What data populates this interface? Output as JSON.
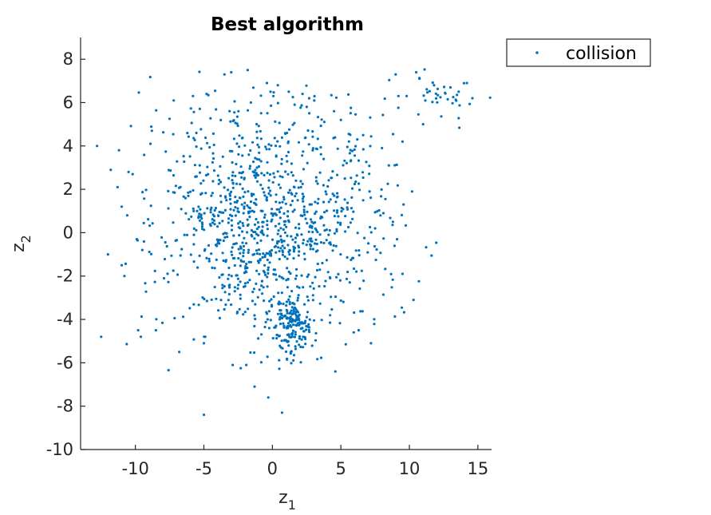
{
  "chart_data": {
    "type": "scatter",
    "title": "Best algorithm",
    "xlabel": "z",
    "xlabel_sub": "1",
    "ylabel": "z",
    "ylabel_sub": "2",
    "xlim": [
      -14,
      16
    ],
    "ylim": [
      -10,
      9
    ],
    "xticks": [
      -10,
      -5,
      0,
      5,
      10,
      15
    ],
    "yticks": [
      -10,
      -8,
      -6,
      -4,
      -2,
      0,
      2,
      4,
      6,
      8
    ],
    "xtick_labels": [
      "-10",
      "-5",
      "0",
      "5",
      "10",
      "15"
    ],
    "ytick_labels": [
      "-10",
      "-8",
      "-6",
      "-4",
      "-2",
      "0",
      "2",
      "4",
      "6",
      "8"
    ],
    "grid": false,
    "legend": "top-right, outside axes",
    "series": [
      {
        "name": "collision",
        "color": "#0072BD",
        "marker": "dot",
        "clusters": [
          {
            "cx": 0.0,
            "cy": 0.6,
            "sx": 4.0,
            "sy": 2.9,
            "n": 1050
          },
          {
            "cx": 1.5,
            "cy": -4.2,
            "sx": 0.7,
            "sy": 0.7,
            "n": 170
          },
          {
            "cx": 12.3,
            "cy": 6.2,
            "sx": 1.5,
            "sy": 0.45,
            "n": 35
          }
        ],
        "points": [
          [
            -12.8,
            4.0
          ],
          [
            -12.5,
            -4.8
          ],
          [
            -11.8,
            2.9
          ],
          [
            -11.2,
            3.8
          ],
          [
            -11.3,
            2.1
          ],
          [
            -11.0,
            1.2
          ],
          [
            -10.5,
            2.8
          ],
          [
            -10.2,
            2.7
          ],
          [
            -9.8,
            -4.5
          ],
          [
            -9.6,
            -4.8
          ],
          [
            -7.2,
            6.1
          ],
          [
            -5.8,
            6.3
          ],
          [
            -4.8,
            6.4
          ],
          [
            -3.5,
            7.3
          ],
          [
            -3.0,
            7.4
          ],
          [
            -1.8,
            7.5
          ],
          [
            -0.4,
            6.9
          ],
          [
            0.4,
            6.8
          ],
          [
            1.2,
            6.5
          ],
          [
            2.2,
            6.4
          ],
          [
            4.5,
            5.6
          ],
          [
            5.0,
            5.2
          ],
          [
            6.2,
            4.3
          ],
          [
            8.0,
            3.9
          ],
          [
            8.5,
            3.1
          ],
          [
            9.5,
            4.2
          ],
          [
            10.2,
            1.9
          ],
          [
            8.1,
            0.9
          ],
          [
            8.8,
            0.5
          ],
          [
            9.1,
            -0.3
          ],
          [
            7.5,
            0.2
          ],
          [
            9.5,
            -1.9
          ],
          [
            10.3,
            -3.1
          ],
          [
            7.2,
            -5.1
          ],
          [
            6.3,
            -4.5
          ],
          [
            4.6,
            -6.4
          ],
          [
            -5.0,
            -8.4
          ],
          [
            0.7,
            -8.3
          ],
          [
            -0.3,
            -7.6
          ],
          [
            -1.3,
            -7.1
          ],
          [
            -2.9,
            -6.1
          ],
          [
            -1.9,
            -6.1
          ],
          [
            -6.8,
            -5.5
          ],
          [
            -5.0,
            -5.1
          ],
          [
            -4.9,
            -4.8
          ],
          [
            -8.5,
            -4.5
          ],
          [
            -12.0,
            -1.0
          ],
          [
            -11.0,
            -1.5
          ],
          [
            -10.8,
            -2.0
          ],
          [
            -10.6,
            0.8
          ],
          [
            -9.9,
            -0.3
          ],
          [
            -9.5,
            -0.8
          ],
          [
            -8.9,
            4.1
          ],
          [
            -8.8,
            4.7
          ],
          [
            9.0,
            7.3
          ],
          [
            9.2,
            6.3
          ],
          [
            9.8,
            6.3
          ],
          [
            10.5,
            7.4
          ],
          [
            11.0,
            5.0
          ],
          [
            13.6,
            6.5
          ],
          [
            14.2,
            6.9
          ],
          [
            14.6,
            6.2
          ],
          [
            13.0,
            6.7
          ],
          [
            11.8,
            6.8
          ]
        ]
      }
    ]
  }
}
